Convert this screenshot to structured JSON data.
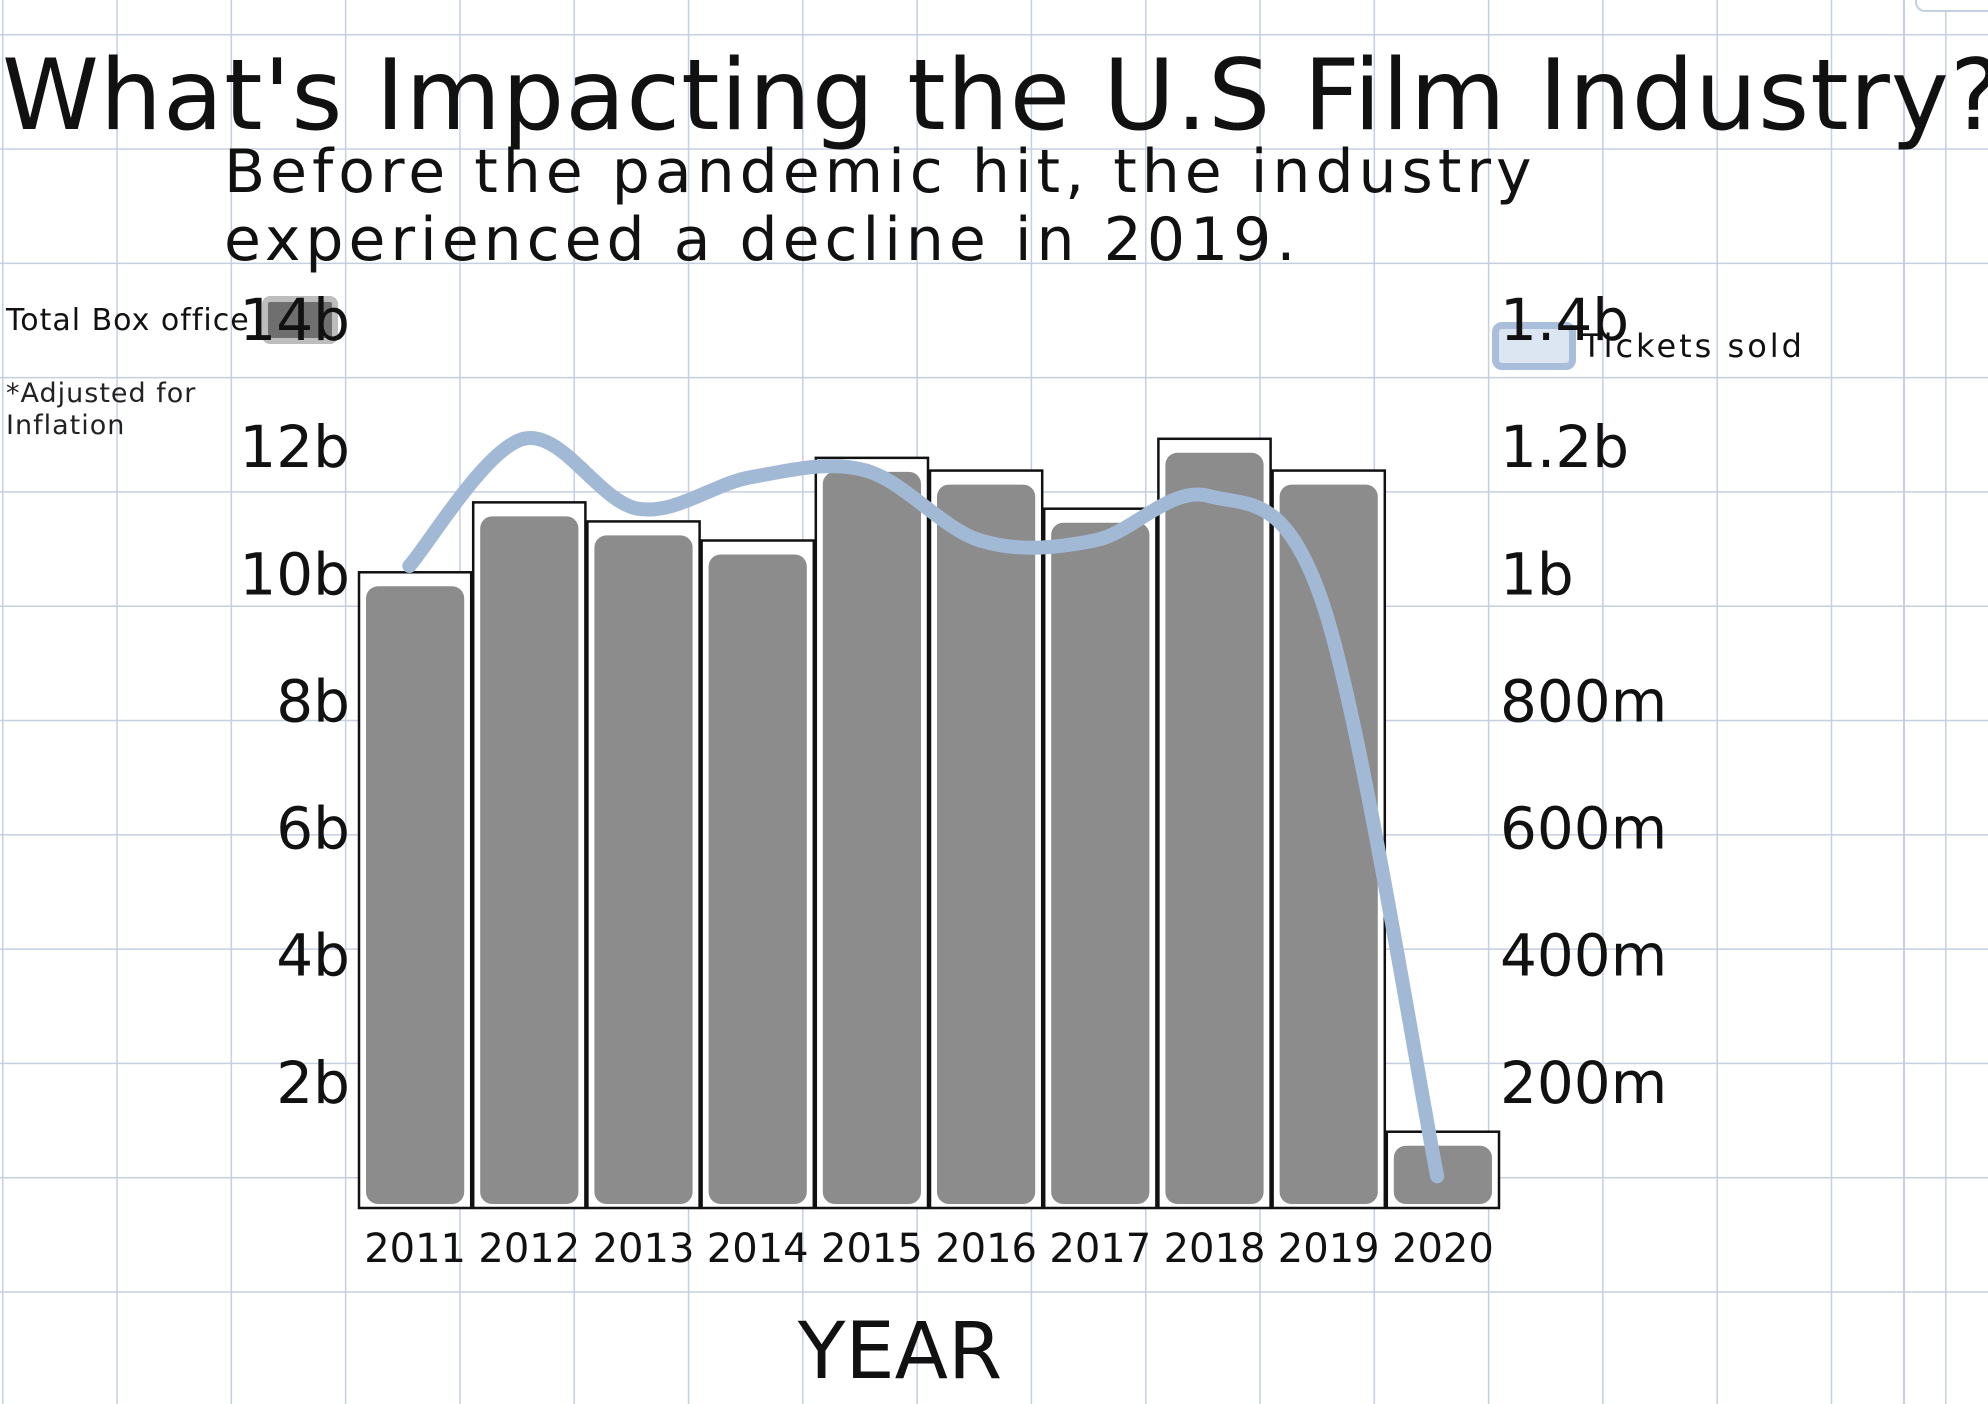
{
  "title": "What's Impacting the U.S Film Industry?",
  "subtitle": "Before the pandemic hit, the industry experienced a decline in 2019.",
  "legend": {
    "box_office": "Total Box office",
    "tickets": "Tickets sold"
  },
  "note": [
    "*Adjusted for",
    "Inflation"
  ],
  "chart_data": {
    "type": "bar",
    "categories": [
      "2011",
      "2012",
      "2013",
      "2014",
      "2015",
      "2016",
      "2017",
      "2018",
      "2019",
      "2020"
    ],
    "series": [
      {
        "name": "Total Box office",
        "type": "bar",
        "axis": "left",
        "values": [
          10.0,
          11.1,
          10.8,
          10.5,
          11.8,
          11.6,
          11.0,
          12.1,
          11.6,
          1.2
        ],
        "color": "#8c8c8c"
      },
      {
        "name": "Tickets sold",
        "type": "line",
        "axis": "right",
        "values": [
          1.01,
          1.21,
          1.1,
          1.15,
          1.16,
          1.05,
          1.05,
          1.12,
          0.95,
          0.05
        ],
        "color": "#a2b9d6"
      }
    ],
    "y_left": {
      "ylim": [
        0,
        14
      ],
      "ticks": [
        2,
        4,
        6,
        8,
        10,
        12,
        14
      ],
      "tick_labels": [
        "2b",
        "4b",
        "6b",
        "8b",
        "10b",
        "12b",
        "14b"
      ]
    },
    "y_right": {
      "ylim": [
        0,
        1.4
      ],
      "ticks": [
        0.2,
        0.4,
        0.6,
        0.8,
        1.0,
        1.2,
        1.4
      ],
      "tick_labels": [
        "200m",
        "400m",
        "600m",
        "800m",
        "1b",
        "1.2b",
        "1.4b"
      ]
    },
    "xlabel": "YEAR",
    "legend_position": "top",
    "grid": true
  }
}
